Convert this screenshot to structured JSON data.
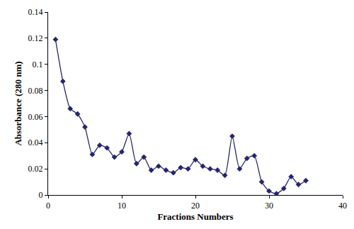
{
  "chart_data": {
    "type": "line",
    "x_label": "Fractions Numbers",
    "y_label": "Absorbance (280 nm)",
    "x": [
      1,
      2,
      3,
      4,
      5,
      6,
      7,
      8,
      9,
      10,
      11,
      12,
      13,
      14,
      15,
      16,
      17,
      18,
      19,
      20,
      21,
      22,
      23,
      24,
      25,
      26,
      27,
      28,
      29,
      30,
      31,
      32,
      33,
      34,
      35
    ],
    "values": [
      0.119,
      0.087,
      0.066,
      0.062,
      0.052,
      0.031,
      0.038,
      0.036,
      0.029,
      0.033,
      0.047,
      0.024,
      0.029,
      0.019,
      0.022,
      0.019,
      0.017,
      0.021,
      0.02,
      0.027,
      0.022,
      0.02,
      0.019,
      0.015,
      0.045,
      0.02,
      0.028,
      0.03,
      0.01,
      0.003,
      0.001,
      0.005,
      0.014,
      0.008,
      0.011
    ],
    "color": "#25256e",
    "marker": "diamond",
    "line_style": "smooth",
    "xlim": [
      0,
      40
    ],
    "xticks": [
      0,
      10,
      20,
      30,
      40
    ],
    "ylim": [
      0,
      0.14
    ],
    "yticks": [
      0,
      0.02,
      0.04,
      0.06,
      0.08,
      0.1,
      0.12,
      0.14
    ],
    "grid": false
  }
}
